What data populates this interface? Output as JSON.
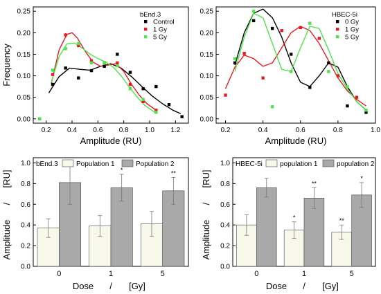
{
  "chart_data": [
    {
      "type": "scatter",
      "title": "",
      "xlabel": "Amplitude (RU)",
      "ylabel": "Frequency",
      "xlim": [
        0.1,
        1.3
      ],
      "ylim": [
        -0.01,
        0.26
      ],
      "xticks": [
        "0.2",
        "0.4",
        "0.6",
        "0.8",
        "1.0",
        "1.2"
      ],
      "xtick_values": [
        0.2,
        0.4,
        0.6,
        0.8,
        1.0,
        1.2
      ],
      "yticks": [
        "0.00",
        "0.05",
        "0.10",
        "0.15",
        "0.20",
        "0.25"
      ],
      "ytick_values": [
        0,
        0.05,
        0.1,
        0.15,
        0.2,
        0.25
      ],
      "grid": false,
      "legend_title": "bEnd.3",
      "legend_position": "top-right",
      "series": [
        {
          "name": "Control",
          "color": "#000000",
          "x": [
            0.15,
            0.25,
            0.35,
            0.45,
            0.55,
            0.65,
            0.75,
            0.85,
            0.95,
            1.05,
            1.15,
            1.25
          ],
          "y": [
            0.0,
            0.08,
            0.118,
            0.095,
            0.112,
            0.122,
            0.15,
            0.108,
            0.07,
            0.075,
            0.033,
            0.005
          ],
          "fit_x": [
            0.22,
            0.3,
            0.38,
            0.46,
            0.54,
            0.62,
            0.7,
            0.78,
            0.86,
            0.94,
            1.02,
            1.1,
            1.18,
            1.24
          ],
          "fit_y": [
            0.06,
            0.098,
            0.118,
            0.115,
            0.113,
            0.122,
            0.128,
            0.118,
            0.098,
            0.075,
            0.053,
            0.035,
            0.02,
            0.012
          ]
        },
        {
          "name": "1 Gy",
          "color": "#e51c23",
          "x": [
            0.25,
            0.35,
            0.45,
            0.55,
            0.65,
            0.75,
            0.85,
            0.95,
            1.05
          ],
          "y": [
            0.103,
            0.195,
            0.17,
            0.135,
            0.13,
            0.13,
            0.08,
            0.04,
            0.02
          ],
          "fit_x": [
            0.24,
            0.3,
            0.36,
            0.4,
            0.44,
            0.5,
            0.56,
            0.62,
            0.68,
            0.74,
            0.8,
            0.86,
            0.92,
            0.98,
            1.04
          ],
          "fit_y": [
            0.082,
            0.16,
            0.196,
            0.2,
            0.188,
            0.158,
            0.132,
            0.122,
            0.125,
            0.128,
            0.11,
            0.08,
            0.055,
            0.035,
            0.022
          ]
        },
        {
          "name": "5 Gy",
          "color": "#4ee44e",
          "x": [
            0.15,
            0.25,
            0.35,
            0.45,
            0.55,
            0.65,
            0.75,
            0.85,
            0.95,
            1.05
          ],
          "y": [
            0.0,
            0.113,
            0.163,
            0.175,
            0.13,
            0.13,
            0.123,
            0.07,
            0.045,
            0.015
          ],
          "fit_x": [
            0.24,
            0.3,
            0.36,
            0.42,
            0.48,
            0.54,
            0.6,
            0.66,
            0.72,
            0.78,
            0.84,
            0.9,
            0.96,
            1.04
          ],
          "fit_y": [
            0.085,
            0.145,
            0.174,
            0.176,
            0.164,
            0.15,
            0.14,
            0.132,
            0.12,
            0.1,
            0.075,
            0.052,
            0.032,
            0.015
          ]
        }
      ]
    },
    {
      "type": "scatter",
      "title": "",
      "xlabel": "Amplitude (RU)",
      "ylabel": "",
      "xlim": [
        0.15,
        1.0
      ],
      "ylim": [
        -0.01,
        0.26
      ],
      "xticks": [
        "0.2",
        "0.4",
        "0.6",
        "0.8",
        "1.0"
      ],
      "xtick_values": [
        0.2,
        0.4,
        0.6,
        0.8,
        1.0
      ],
      "yticks": [
        "0.00",
        "0.05",
        "0.10",
        "0.15",
        "0.20",
        "0.25"
      ],
      "ytick_values": [
        0,
        0.05,
        0.1,
        0.15,
        0.2,
        0.25
      ],
      "grid": false,
      "legend_title": "HBEC-5i",
      "legend_position": "top-right",
      "series": [
        {
          "name": "0 Gy",
          "color": "#000000",
          "x": [
            0.25,
            0.35,
            0.45,
            0.55,
            0.65,
            0.75,
            0.85,
            0.95
          ],
          "y": [
            0.13,
            0.228,
            0.21,
            0.15,
            0.073,
            0.13,
            0.03,
            0.015
          ],
          "fit_x": [
            0.25,
            0.3,
            0.35,
            0.4,
            0.45,
            0.5,
            0.55,
            0.6,
            0.65,
            0.7,
            0.75,
            0.8,
            0.85,
            0.9,
            0.95
          ],
          "fit_y": [
            0.125,
            0.2,
            0.245,
            0.255,
            0.235,
            0.19,
            0.13,
            0.085,
            0.075,
            0.1,
            0.13,
            0.12,
            0.075,
            0.04,
            0.02
          ]
        },
        {
          "name": "1 Gy",
          "color": "#e51c23",
          "x": [
            0.2,
            0.3,
            0.4,
            0.5,
            0.6,
            0.7,
            0.8,
            0.9
          ],
          "y": [
            0.055,
            0.152,
            0.095,
            0.205,
            0.212,
            0.187,
            0.1,
            0.05
          ],
          "fit_x": [
            0.2,
            0.25,
            0.3,
            0.35,
            0.4,
            0.45,
            0.5,
            0.55,
            0.6,
            0.65,
            0.7,
            0.75,
            0.8,
            0.85,
            0.9,
            0.95
          ],
          "fit_y": [
            0.07,
            0.12,
            0.148,
            0.14,
            0.122,
            0.13,
            0.165,
            0.2,
            0.215,
            0.205,
            0.175,
            0.135,
            0.095,
            0.065,
            0.045,
            0.03
          ]
        },
        {
          "name": "5 Gy",
          "color": "#4ee44e",
          "x": [
            0.25,
            0.35,
            0.45,
            0.55,
            0.65,
            0.75,
            0.85,
            0.95
          ],
          "y": [
            0.14,
            0.25,
            0.028,
            0.11,
            0.222,
            0.11,
            0.075,
            0.02
          ],
          "fit_x": [
            0.25,
            0.3,
            0.35,
            0.4,
            0.45,
            0.5,
            0.55,
            0.6,
            0.65,
            0.7,
            0.75,
            0.8,
            0.85,
            0.9,
            0.95
          ],
          "fit_y": [
            0.11,
            0.19,
            0.245,
            0.235,
            0.175,
            0.115,
            0.11,
            0.165,
            0.215,
            0.21,
            0.16,
            0.105,
            0.07,
            0.04,
            0.02
          ]
        }
      ]
    },
    {
      "type": "bar",
      "title": "",
      "xlabel": "Dose",
      "xlabel_unit": "[Gy]",
      "ylabel": "Amplitude",
      "ylabel_unit": "[RU]",
      "ylim": [
        0,
        1.05
      ],
      "yticks": [
        "0.0",
        "0.2",
        "0.4",
        "0.6",
        "0.8",
        "1.0"
      ],
      "ytick_values": [
        0,
        0.2,
        0.4,
        0.6,
        0.8,
        1.0
      ],
      "categories": [
        "0",
        "1",
        "5"
      ],
      "legend_title": "bEnd.3",
      "legend_position": "top",
      "grid": false,
      "series": [
        {
          "name": "Population 1",
          "color": "#f8f8ea",
          "values": [
            0.37,
            0.39,
            0.41
          ],
          "errors": [
            0.09,
            0.1,
            0.12
          ],
          "annotations": [
            "",
            "",
            ""
          ]
        },
        {
          "name": "Population 2",
          "color": "#a9a9a9",
          "values": [
            0.81,
            0.76,
            0.73
          ],
          "errors": [
            0.21,
            0.13,
            0.13
          ],
          "annotations": [
            "",
            "*",
            "**"
          ]
        }
      ]
    },
    {
      "type": "bar",
      "title": "",
      "xlabel": "Dose",
      "xlabel_unit": "[Gy]",
      "ylabel": "Amplitude",
      "ylabel_unit": "[RU]",
      "ylim": [
        0,
        1.05
      ],
      "yticks": [
        "0.0",
        "0.2",
        "0.4",
        "0.6",
        "0.8",
        "1.0"
      ],
      "ytick_values": [
        0,
        0.2,
        0.4,
        0.6,
        0.8,
        1.0
      ],
      "categories": [
        "0",
        "1",
        "5"
      ],
      "legend_title": "HBEC-5i",
      "legend_position": "top",
      "grid": false,
      "series": [
        {
          "name": "population 1",
          "color": "#f8f8ea",
          "values": [
            0.4,
            0.35,
            0.33
          ],
          "errors": [
            0.1,
            0.08,
            0.07
          ],
          "annotations": [
            "",
            "*",
            "**"
          ]
        },
        {
          "name": "population 2",
          "color": "#a9a9a9",
          "values": [
            0.76,
            0.66,
            0.69
          ],
          "errors": [
            0.09,
            0.1,
            0.12
          ],
          "annotations": [
            "",
            "**",
            "*"
          ]
        }
      ]
    }
  ]
}
